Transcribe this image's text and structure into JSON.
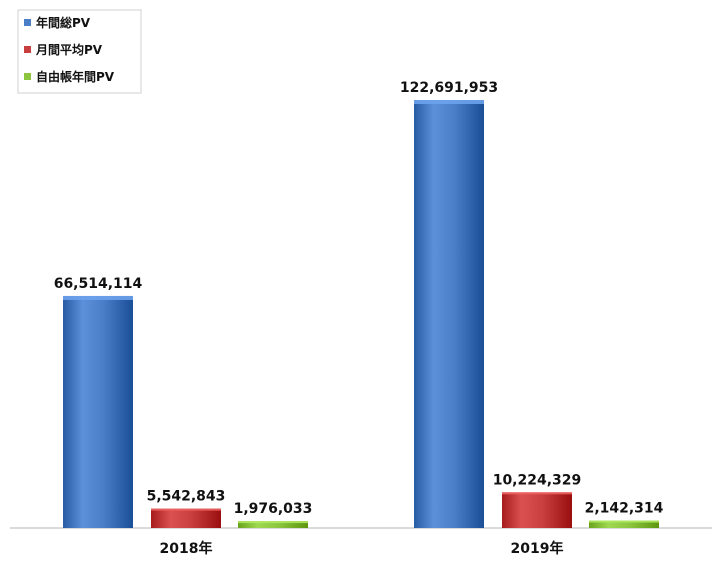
{
  "chart_data": {
    "type": "bar",
    "categories": [
      "2018年",
      "2019年"
    ],
    "series": [
      {
        "name": "年間総PV",
        "values": [
          66514114,
          122691953
        ],
        "labels": [
          "66,514,114",
          "122,691,953"
        ],
        "color": "#4A7FC8"
      },
      {
        "name": "月間平均PV",
        "values": [
          5542843,
          10224329
        ],
        "labels": [
          "5,542,843",
          "10,224,329"
        ],
        "color": "#C93E3E"
      },
      {
        "name": "自由帳年間PV",
        "values": [
          1976033,
          2142314
        ],
        "labels": [
          "1,976,033",
          "2,142,314"
        ],
        "color": "#8CC63F"
      }
    ],
    "legend_position": "top-left",
    "grid": false
  }
}
